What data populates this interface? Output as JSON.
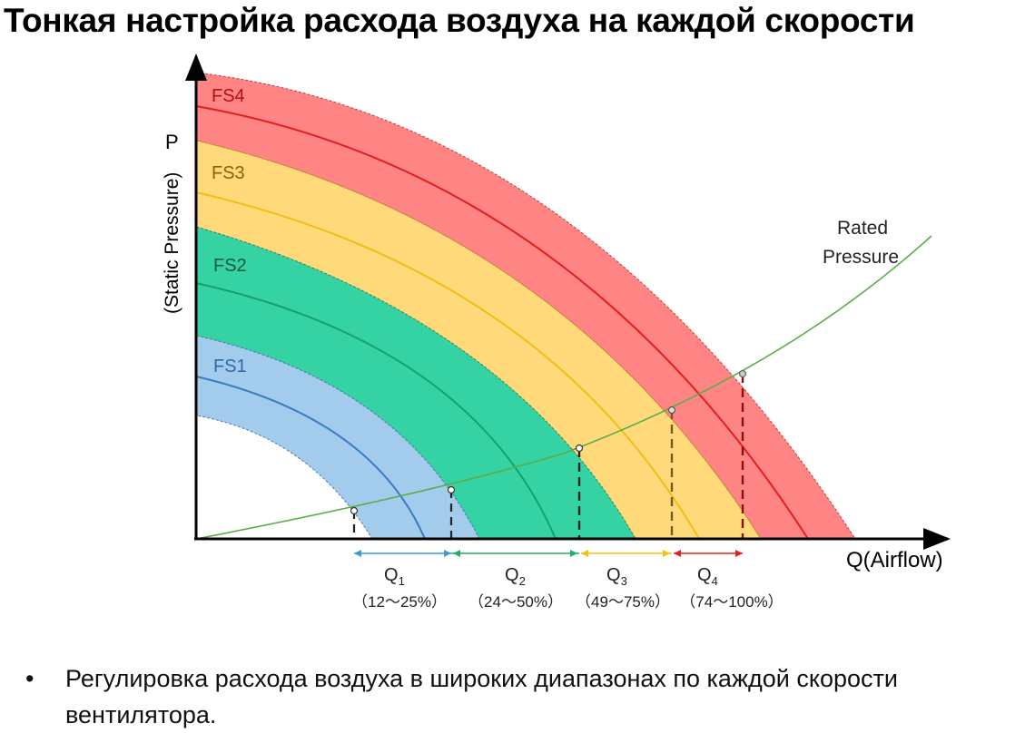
{
  "title": "Тонкая настройка расхода воздуха на каждой скорости",
  "axis": {
    "y_label": "P",
    "y_sublabel": "(Static Pressure)",
    "x_label": "Q(Airflow)"
  },
  "rated_curve": {
    "label_line1": "Rated",
    "label_line2": "Pressure",
    "color": "#5aac48"
  },
  "speeds": [
    {
      "id": "fs1",
      "label": "FS1",
      "fill": "#a3cbec",
      "line": "#3a7cc0",
      "label_color": "#2f6aa6"
    },
    {
      "id": "fs2",
      "label": "FS2",
      "fill": "#35d3a3",
      "line": "#16a070",
      "label_color": "#145a3c"
    },
    {
      "id": "fs3",
      "label": "FS3",
      "fill": "#ffd97a",
      "line": "#f2be12",
      "label_color": "#8a6400"
    },
    {
      "id": "fs4",
      "label": "FS4",
      "fill": "#ff8585",
      "line": "#e51d1d",
      "label_color": "#b01010"
    }
  ],
  "ranges": [
    {
      "id": "q1",
      "name": "Q",
      "sub": "1",
      "range": "（12～25%）",
      "color": "#3b9ad6"
    },
    {
      "id": "q2",
      "name": "Q",
      "sub": "2",
      "range": "（24～50%）",
      "color": "#1fb06a"
    },
    {
      "id": "q3",
      "name": "Q",
      "sub": "3",
      "range": "（49～75%）",
      "color": "#f4c20d"
    },
    {
      "id": "q4",
      "name": "Q",
      "sub": "4",
      "range": "（74～100%）",
      "color": "#e22222"
    }
  ],
  "bullet": {
    "symbol": "•",
    "text": "Регулировка расхода воздуха в широких диапазонах по каждой скорости вентилятора."
  }
}
